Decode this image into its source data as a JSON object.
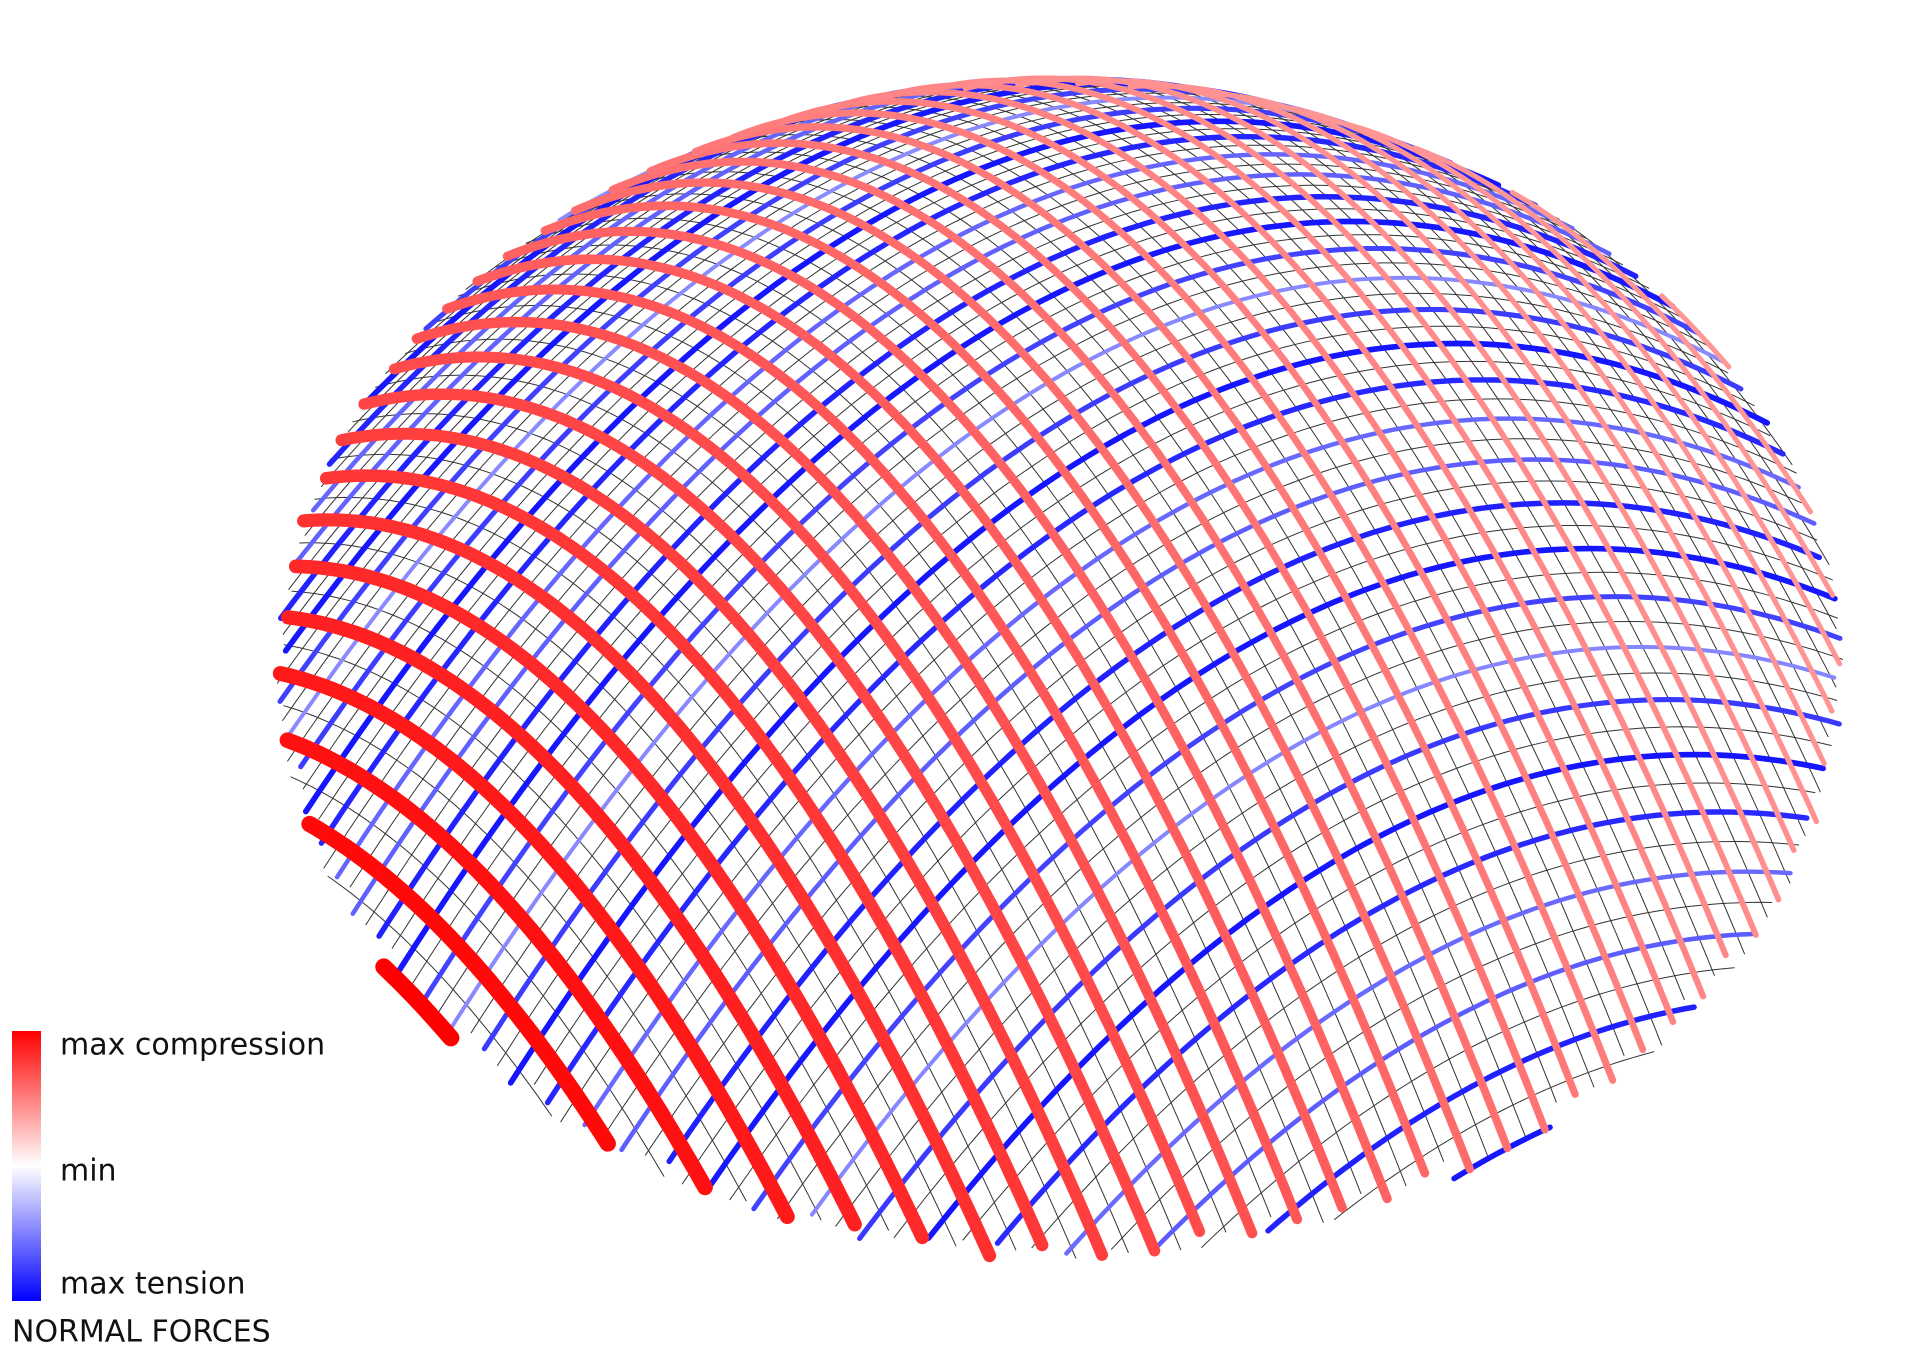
{
  "legend": {
    "title": "NORMAL FORCES",
    "labels": [
      "max compression",
      "min",
      "max tension"
    ]
  }
}
